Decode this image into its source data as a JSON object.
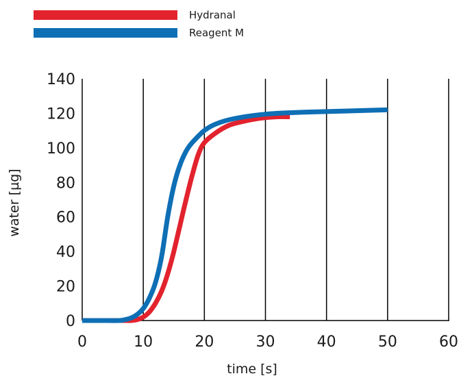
{
  "chart_data": {
    "type": "line",
    "xlabel": "time [s]",
    "ylabel": "water [µg]",
    "xlim": [
      0,
      60
    ],
    "ylim": [
      0,
      140
    ],
    "x_ticks": [
      0,
      10,
      20,
      30,
      40,
      50,
      60
    ],
    "y_ticks": [
      0,
      20,
      40,
      60,
      80,
      100,
      120,
      140
    ],
    "grid": "vertical",
    "legend_position": "top-left",
    "series": [
      {
        "name": "Hydranal",
        "color": "#e2232e",
        "x": [
          0,
          6,
          7,
          8,
          9,
          10,
          11,
          12,
          13,
          14,
          15,
          16,
          17,
          18,
          19,
          20,
          22,
          24,
          26,
          28,
          30,
          32,
          34
        ],
        "y": [
          0,
          0,
          0,
          0,
          0.5,
          2,
          5,
          10,
          17,
          27,
          40,
          55,
          70,
          84,
          96,
          103,
          109,
          113,
          115,
          116.5,
          117.5,
          118,
          118
        ]
      },
      {
        "name": "Reagent M",
        "color": "#0e6fb5",
        "x": [
          0,
          3,
          6,
          7,
          8,
          9,
          10,
          11,
          12,
          13,
          14,
          15,
          16,
          17,
          18,
          20,
          22,
          25,
          30,
          35,
          40,
          45,
          50
        ],
        "y": [
          0,
          0,
          0,
          0.5,
          1.5,
          3.5,
          7,
          13,
          22,
          37,
          60,
          78,
          90,
          98,
          103,
          110,
          114,
          117,
          119.5,
          120.5,
          121,
          121.5,
          122
        ]
      }
    ]
  }
}
